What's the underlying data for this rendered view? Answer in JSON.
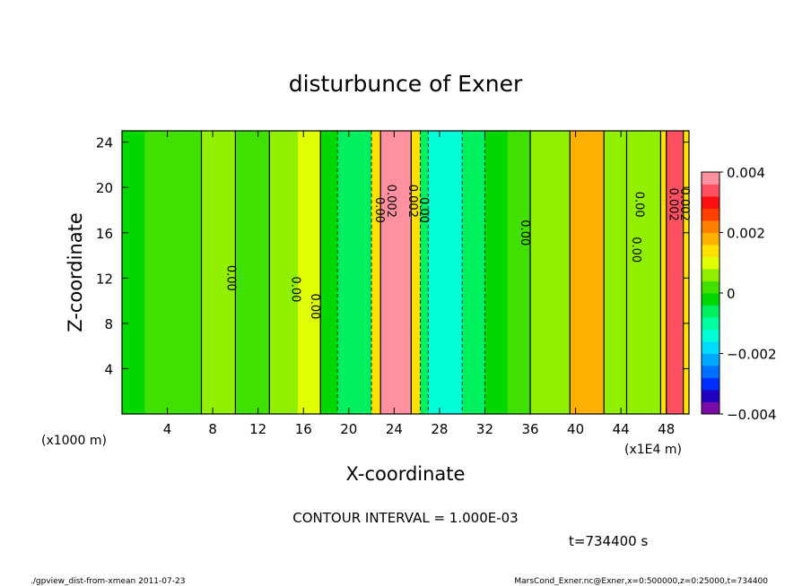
{
  "chart_data": {
    "type": "heatmap",
    "title": "disturbunce of Exner",
    "xlabel": "X-coordinate",
    "ylabel": "Z-coordinate",
    "x_unit_left": "(x1000 m)",
    "x_unit_right": "(x1E4 m)",
    "xlim": [
      0,
      50
    ],
    "ylim": [
      0,
      25
    ],
    "x_ticks": [
      4,
      8,
      12,
      16,
      20,
      24,
      28,
      32,
      36,
      40,
      44,
      48
    ],
    "y_ticks": [
      4,
      8,
      12,
      16,
      20,
      24
    ],
    "colorbar": {
      "range": [
        -0.004,
        0.004
      ],
      "tick_values": [
        0.004,
        0.002,
        0,
        -0.002,
        -0.004
      ],
      "tick_labels": [
        "0.004",
        "0.002",
        "0",
        "−0.002",
        "−0.004"
      ],
      "colors": [
        "#7a0aa8",
        "#2200c0",
        "#0030ff",
        "#0070ff",
        "#00a8ff",
        "#00dcff",
        "#00ffd8",
        "#00ffa0",
        "#00f060",
        "#00d800",
        "#40e000",
        "#90f000",
        "#e0ff00",
        "#ffe000",
        "#ffb000",
        "#ff8000",
        "#ff4000",
        "#ff1010",
        "#ff5060",
        "#ff90a0"
      ]
    },
    "bands": [
      {
        "x0": 0,
        "x1": 2,
        "value": -0.0003
      },
      {
        "x0": 2,
        "x1": 7,
        "value": 0.0002
      },
      {
        "x0": 7,
        "x1": 10,
        "value": 0.0007
      },
      {
        "x0": 10,
        "x1": 13,
        "value": 0.0002
      },
      {
        "x0": 13,
        "x1": 15.5,
        "value": 0.0007
      },
      {
        "x0": 15.5,
        "x1": 17.5,
        "value": 0.0008
      },
      {
        "x0": 17.5,
        "x1": 19,
        "value": -0.0002
      },
      {
        "x0": 19,
        "x1": 22,
        "value": -0.0008
      },
      {
        "x0": 22,
        "x1": 22.8,
        "value": 0.0013
      },
      {
        "x0": 22.8,
        "x1": 25.5,
        "value": 0.0037
      },
      {
        "x0": 25.5,
        "x1": 26.3,
        "value": 0.0013
      },
      {
        "x0": 26.3,
        "x1": 27,
        "value": -0.0008
      },
      {
        "x0": 27,
        "x1": 30,
        "value": -0.0016
      },
      {
        "x0": 30,
        "x1": 32,
        "value": -0.0006
      },
      {
        "x0": 32,
        "x1": 34,
        "value": -0.0002
      },
      {
        "x0": 34,
        "x1": 36,
        "value": 0.0003
      },
      {
        "x0": 36,
        "x1": 39.5,
        "value": 0.0007
      },
      {
        "x0": 39.5,
        "x1": 42.5,
        "value": 0.0016
      },
      {
        "x0": 42.5,
        "x1": 44.5,
        "value": 0.0007
      },
      {
        "x0": 44.5,
        "x1": 47.5,
        "value": 0.0004
      },
      {
        "x0": 47.5,
        "x1": 48,
        "value": 0.0013
      },
      {
        "x0": 48,
        "x1": 49.5,
        "value": 0.0035
      },
      {
        "x0": 49.5,
        "x1": 50,
        "value": 0.0015
      }
    ],
    "contour_labels": [
      {
        "x": 9.3,
        "z": 12,
        "text": "0.00"
      },
      {
        "x": 15.0,
        "z": 11,
        "text": "0.00"
      },
      {
        "x": 16.7,
        "z": 9.5,
        "text": "0.00"
      },
      {
        "x": 22.4,
        "z": 18,
        "text": "0.00"
      },
      {
        "x": 23.4,
        "z": 18.8,
        "text": "0.002"
      },
      {
        "x": 25.3,
        "z": 18.8,
        "text": "0.002"
      },
      {
        "x": 26.3,
        "z": 18,
        "text": "0.00"
      },
      {
        "x": 35.2,
        "z": 16,
        "text": "0.00"
      },
      {
        "x": 45.0,
        "z": 14.5,
        "text": "0.00"
      },
      {
        "x": 45.3,
        "z": 18.5,
        "text": "0.00"
      },
      {
        "x": 48.3,
        "z": 18.5,
        "text": "0.002"
      },
      {
        "x": 49.3,
        "z": 18.5,
        "text": "0.002"
      }
    ]
  },
  "annotations": {
    "contour_interval": "CONTOUR INTERVAL = 1.000E-03",
    "time": "t=734400 s",
    "footer_left": "./gpview_dist-from-xmean  2011-07-23",
    "footer_right": "MarsCond_Exner.nc@Exner,x=0:500000,z=0:25000,t=734400"
  }
}
